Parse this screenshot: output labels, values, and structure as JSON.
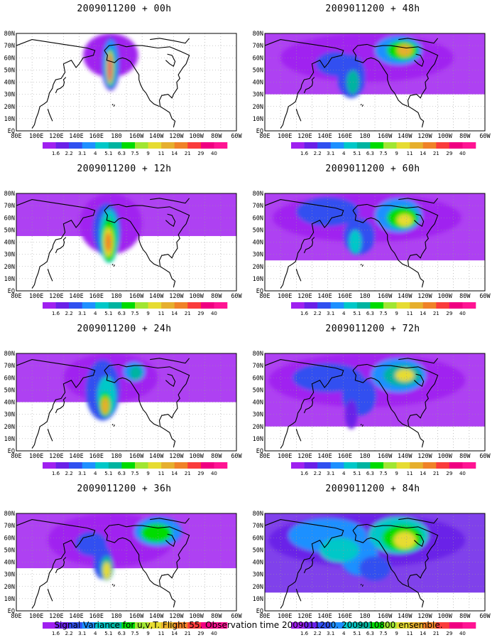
{
  "panels": [
    {
      "title": "2009011200 + 00h",
      "stage": 0
    },
    {
      "title": "2009011200 + 48h",
      "stage": 4
    },
    {
      "title": "2009011200 + 12h",
      "stage": 1
    },
    {
      "title": "2009011200 + 60h",
      "stage": 5
    },
    {
      "title": "2009011200 + 24h",
      "stage": 2
    },
    {
      "title": "2009011200 + 72h",
      "stage": 6
    },
    {
      "title": "2009011200 + 36h",
      "stage": 3
    },
    {
      "title": "2009011200 + 84h",
      "stage": 7
    }
  ],
  "axes": {
    "lon_labels": [
      "80E",
      "100E",
      "120E",
      "140E",
      "160E",
      "180",
      "160W",
      "140W",
      "120W",
      "100W",
      "80W",
      "60W"
    ],
    "lat_labels": [
      "EQ",
      "10N",
      "20N",
      "30N",
      "40N",
      "50N",
      "60N",
      "70N",
      "80N"
    ]
  },
  "colorbar": {
    "labels": [
      "1.6",
      "2.2",
      "3.1",
      "4",
      "5.1",
      "6.3",
      "7.5",
      "9",
      "11",
      "14",
      "21",
      "29",
      "40"
    ],
    "colors": [
      "#a020f0",
      "#6a20e8",
      "#3050f0",
      "#1e90ff",
      "#00c8c8",
      "#00b4a0",
      "#00dc00",
      "#a0e632",
      "#e6dc32",
      "#e6af2d",
      "#f08228",
      "#fa3c3c",
      "#f00082"
    ]
  },
  "caption": "Signal Variance for u,v,T. Flight 55. Observation time 2009011200. 2009010800 ensemble."
}
